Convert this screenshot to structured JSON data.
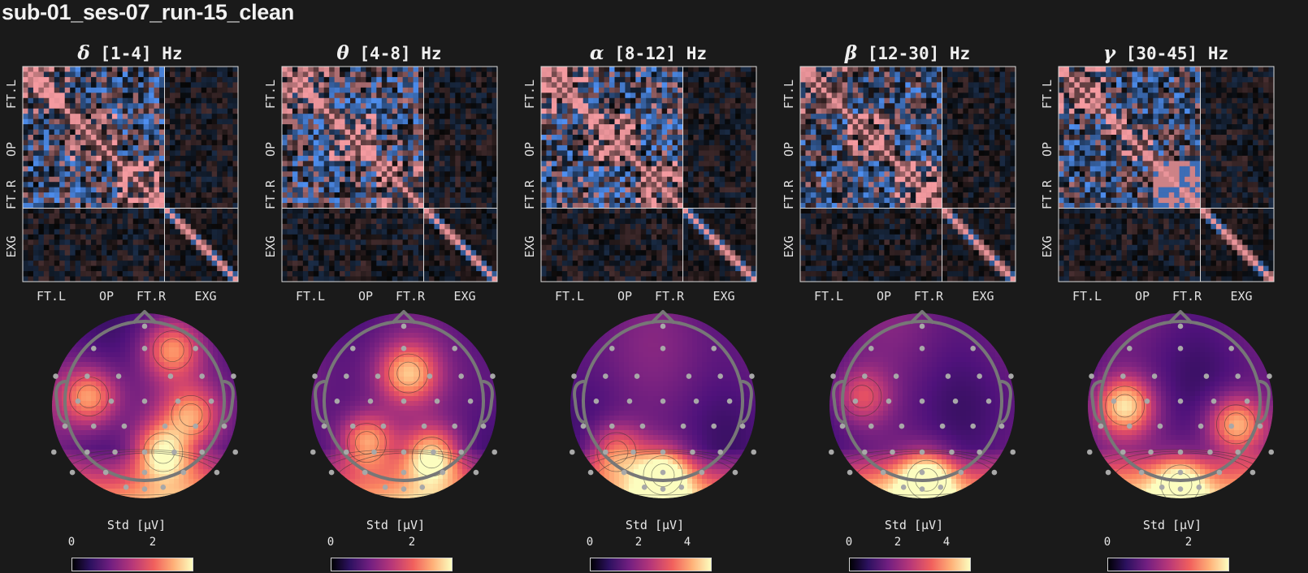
{
  "page_title": "sub-01_ses-07_run-15_clean",
  "colors": {
    "background": "#1a1a1a",
    "positive": "#f49aa0",
    "negative": "#4f8ff0",
    "text": "#e8e8e8"
  },
  "chart_data": [
    {
      "type": "heatmap",
      "band": "delta",
      "symbol": "δ",
      "range_label": "[1-4] Hz",
      "row_labels": [
        "FT.L",
        "OP",
        "FT.R",
        "EXG"
      ],
      "col_labels": [
        "FT.L",
        "OP",
        "FT.R",
        "EXG"
      ],
      "topomap": {
        "colorbar_label": "Std [μV]",
        "ticks": [
          "0",
          "2"
        ],
        "tick_values": [
          0,
          2
        ],
        "vmax": 3.0,
        "hotspots": [
          {
            "x": -0.6,
            "y": 0.1,
            "v": 0.78
          },
          {
            "x": 0.3,
            "y": 0.6,
            "v": 0.7
          },
          {
            "x": 0.2,
            "y": -0.5,
            "v": 1.0
          },
          {
            "x": 0.5,
            "y": -0.1,
            "v": 0.65
          }
        ]
      }
    },
    {
      "type": "heatmap",
      "band": "theta",
      "symbol": "θ",
      "range_label": "[4-8] Hz",
      "row_labels": [
        "FT.L",
        "OP",
        "FT.R",
        "EXG"
      ],
      "col_labels": [
        "FT.L",
        "OP",
        "FT.R",
        "EXG"
      ],
      "topomap": {
        "colorbar_label": "Std [μV]",
        "ticks": [
          "0",
          "2"
        ],
        "tick_values": [
          0,
          2
        ],
        "vmax": 3.0,
        "hotspots": [
          {
            "x": 0.05,
            "y": 0.35,
            "v": 0.8
          },
          {
            "x": -0.4,
            "y": -0.4,
            "v": 0.9
          },
          {
            "x": 0.3,
            "y": -0.55,
            "v": 1.0
          }
        ]
      }
    },
    {
      "type": "heatmap",
      "band": "alpha",
      "symbol": "α",
      "range_label": "[8-12] Hz",
      "row_labels": [
        "FT.L",
        "OP",
        "FT.R",
        "EXG"
      ],
      "col_labels": [
        "FT.L",
        "OP",
        "FT.R",
        "EXG"
      ],
      "topomap": {
        "colorbar_label": "Std [μV]",
        "ticks": [
          "0",
          "2",
          "4"
        ],
        "tick_values": [
          0,
          2,
          4
        ],
        "vmax": 5.0,
        "hotspots": [
          {
            "x": 0.0,
            "y": -0.75,
            "v": 1.0
          },
          {
            "x": -0.5,
            "y": -0.5,
            "v": 0.7
          }
        ]
      }
    },
    {
      "type": "heatmap",
      "band": "beta",
      "symbol": "β",
      "range_label": "[12-30] Hz",
      "row_labels": [
        "FT.L",
        "OP",
        "FT.R",
        "EXG"
      ],
      "col_labels": [
        "FT.L",
        "OP",
        "FT.R",
        "EXG"
      ],
      "topomap": {
        "colorbar_label": "Std [μV]",
        "ticks": [
          "0",
          "2",
          "4"
        ],
        "tick_values": [
          0,
          2,
          4
        ],
        "vmax": 5.0,
        "hotspots": [
          {
            "x": 0.05,
            "y": -0.8,
            "v": 1.0
          },
          {
            "x": -0.65,
            "y": 0.1,
            "v": 0.55
          }
        ]
      }
    },
    {
      "type": "heatmap",
      "band": "gamma",
      "symbol": "γ",
      "range_label": "[30-45] Hz",
      "row_labels": [
        "FT.L",
        "OP",
        "FT.R",
        "EXG"
      ],
      "col_labels": [
        "FT.L",
        "OP",
        "FT.R",
        "EXG"
      ],
      "topomap": {
        "colorbar_label": "Std [μV]",
        "ticks": [
          "0",
          "2"
        ],
        "tick_values": [
          0,
          2
        ],
        "vmax": 3.0,
        "hotspots": [
          {
            "x": -0.6,
            "y": 0.0,
            "v": 1.0
          },
          {
            "x": 0.6,
            "y": -0.2,
            "v": 0.85
          },
          {
            "x": 0.0,
            "y": -0.85,
            "v": 0.8
          }
        ]
      }
    }
  ]
}
